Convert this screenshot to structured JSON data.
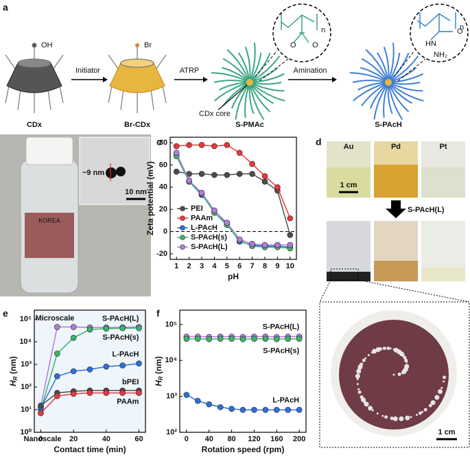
{
  "panel_labels": [
    "a",
    "b",
    "c",
    "d",
    "e",
    "f"
  ],
  "scheme": {
    "oh": "OH",
    "br": "Br",
    "steps": [
      "Initiator",
      "ATRP",
      "Amination"
    ],
    "core": "CDx core",
    "names": [
      "CDx",
      "Br-CDx",
      "S-PMAc",
      "S-PAcH"
    ],
    "n1": "n",
    "n2": "n",
    "o1": "O",
    "o2": "O",
    "o3": "O",
    "hn": "HN",
    "nh2": "NH₂"
  },
  "photo_b": {
    "brand": "KOREA",
    "size": "~9 nm",
    "scale": "10 nm"
  },
  "photo_d": {
    "metals": [
      "Au",
      "Pd",
      "Pt"
    ],
    "scale": "1 cm",
    "reagent": "S-PAcH(L)",
    "zoom_scale": "1 cm"
  },
  "chart_data": [
    {
      "type": "line",
      "xlabel": "pH",
      "ylabel": "Zeta potential (mV)",
      "x": [
        1,
        2,
        3,
        4,
        5,
        6,
        7,
        8,
        9,
        10
      ],
      "xlim": [
        0.5,
        10.5
      ],
      "xticks": [
        1,
        2,
        3,
        4,
        5,
        6,
        7,
        8,
        9,
        10
      ],
      "ylim": [
        -25,
        85
      ],
      "yticks": [
        -20,
        0,
        20,
        40,
        60,
        80
      ],
      "reference_line": 0,
      "legend": "lower left",
      "series": [
        {
          "name": "PEI",
          "color": "#4d4d4d",
          "values": [
            54,
            52,
            52,
            51,
            51,
            52,
            52,
            45,
            37,
            -3
          ]
        },
        {
          "name": "PAAm",
          "color": "#e8383d",
          "values": [
            77,
            78,
            78,
            77,
            78,
            71,
            61,
            50,
            40,
            12
          ]
        },
        {
          "name": "L-PAcH",
          "color": "#2f6fd6",
          "values": [
            68,
            45,
            33,
            19,
            7,
            -9,
            -12,
            -13,
            -13,
            -14
          ]
        },
        {
          "name": "S-PAcH(s)",
          "color": "#3db36b",
          "values": [
            68,
            45,
            34,
            17,
            6,
            -8,
            -13,
            -14,
            -14,
            -15
          ]
        },
        {
          "name": "S-PAcH(L)",
          "color": "#b27be0",
          "values": [
            71,
            46,
            35,
            19,
            8,
            -7,
            -11,
            -12,
            -12,
            -12
          ]
        }
      ]
    },
    {
      "type": "line",
      "xlabel": "Contact time (min)",
      "ylabel": {
        "main": "H",
        "sub": "R",
        "unit": " (nm)"
      },
      "log_y": true,
      "x": [
        0,
        10,
        20,
        30,
        40,
        50,
        60
      ],
      "xlim": [
        -4,
        64
      ],
      "xticks": [
        0,
        20,
        40,
        60
      ],
      "ylim": [
        1,
        250000
      ],
      "yticks": [
        {
          "value": 1,
          "label": "10⁰"
        },
        {
          "value": 10,
          "label": "10¹"
        },
        {
          "value": 100,
          "label": "10²"
        },
        {
          "value": 1000,
          "label": "10³"
        },
        {
          "value": 10000,
          "label": "10⁴"
        },
        {
          "value": 100000,
          "label": "10⁵"
        }
      ],
      "annotations": [
        "Microscale",
        "Nanoscale"
      ],
      "series": [
        {
          "name": "S-PAcH(L)",
          "color": "#b27be0",
          "values": [
            15,
            45000,
            45000,
            43000,
            43000,
            44000,
            45000
          ]
        },
        {
          "name": "S-PAcH(s)",
          "color": "#3db36b",
          "values": [
            10,
            3000,
            15000,
            35000,
            38000,
            40000,
            40000
          ]
        },
        {
          "name": "L-PAcH",
          "color": "#2f6fd6",
          "values": [
            12,
            300,
            500,
            600,
            800,
            900,
            1100
          ]
        },
        {
          "name": "bPEI",
          "color": "#4d4d4d",
          "values": [
            15,
            55,
            65,
            70,
            70,
            70,
            70
          ]
        },
        {
          "name": "PAAm",
          "color": "#e8383d",
          "values": [
            7,
            40,
            50,
            55,
            55,
            55,
            55
          ]
        }
      ]
    },
    {
      "type": "line",
      "xlabel": "Rotation speed (rpm)",
      "ylabel": {
        "main": "H",
        "sub": "R",
        "unit": " (nm)"
      },
      "log_y": true,
      "x": [
        0,
        20,
        40,
        60,
        80,
        100,
        120,
        140,
        160,
        180,
        200
      ],
      "xlim": [
        -12,
        212
      ],
      "xticks": [
        0,
        40,
        80,
        120,
        160,
        200
      ],
      "ylim": [
        100,
        250000
      ],
      "yticks": [
        {
          "value": 100,
          "label": "10²"
        },
        {
          "value": 1000,
          "label": "10³"
        },
        {
          "value": 10000,
          "label": "10⁴"
        },
        {
          "value": 100000,
          "label": "10⁵"
        }
      ],
      "series": [
        {
          "name": "S-PAcH(L)",
          "color": "#b27be0",
          "values": [
            46000,
            46000,
            45000,
            46000,
            46000,
            45000,
            46000,
            46000,
            45000,
            46000,
            46000
          ]
        },
        {
          "name": "S-PAcH(s)",
          "color": "#3db36b",
          "values": [
            40000,
            40000,
            39000,
            40000,
            40000,
            39000,
            40000,
            40000,
            39000,
            40000,
            40000
          ]
        },
        {
          "name": "L-PAcH",
          "color": "#2f6fd6",
          "values": [
            1100,
            750,
            600,
            500,
            450,
            420,
            420,
            420,
            420,
            420,
            420
          ]
        }
      ]
    }
  ]
}
